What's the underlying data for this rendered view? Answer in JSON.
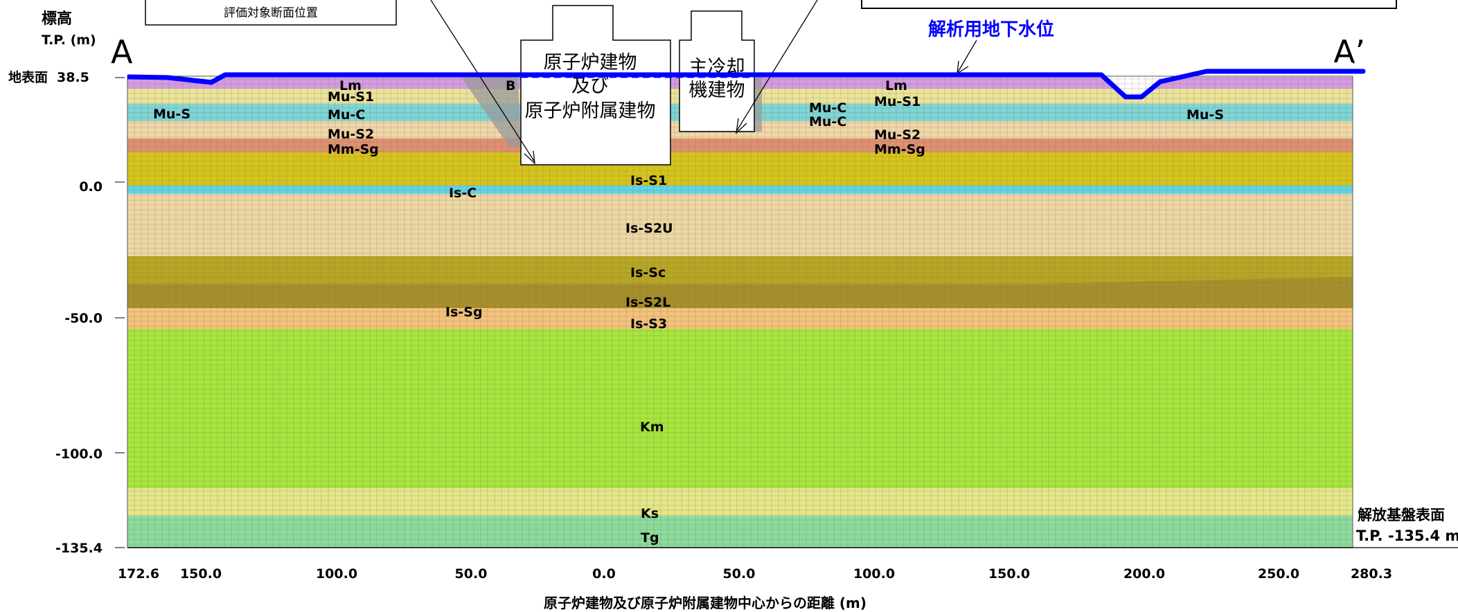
{
  "header": {
    "elevation_label": "標高",
    "elevation_unit": "T.P. (m)",
    "section_start": "A",
    "section_end": "A’",
    "callout_left": "評価対象断面位置"
  },
  "ground_surface": {
    "label": "地表面",
    "value": "38.5"
  },
  "groundwater": {
    "label": "解析用地下水位",
    "color": "#0000ff"
  },
  "buildings": {
    "reactor_line1": "原子炉建物",
    "reactor_line2": "及び",
    "reactor_line3": "原子炉附属建物",
    "cooling_line1": "主冷却",
    "cooling_line2": "機建物",
    "b_label": "B"
  },
  "y_axis": {
    "ticks": [
      "0.0",
      "-50.0",
      "-100.0",
      "-135.4"
    ]
  },
  "x_axis": {
    "ticks": [
      "172.6",
      "150.0",
      "100.0",
      "50.0",
      "0.0",
      "50.0",
      "100.0",
      "150.0",
      "200.0",
      "250.0",
      "280.3"
    ],
    "title": "原子炉建物及び原子炉附属建物中心からの距離 (m)"
  },
  "bedrock": {
    "line1": "解放基盤表面",
    "line2": "T.P. -135.4 m"
  },
  "layer_labels": {
    "lm_left": "Lm",
    "mus1_left": "Mu-S1",
    "mus_left": "Mu-S",
    "muc_left": "Mu-C",
    "mus2_left": "Mu-S2",
    "mmsg_left": "Mm-Sg",
    "muc_right1": "Mu-C",
    "muc_right2": "Mu-C",
    "lm_right": "Lm",
    "mus1_right": "Mu-S1",
    "mus2_right": "Mu-S2",
    "mmsg_right": "Mm-Sg",
    "mus_right": "Mu-S",
    "iss1": "Is-S1",
    "isc": "Is-C",
    "iss2u": "Is-S2U",
    "issc": "Is-Sc",
    "iss2l": "Is-S2L",
    "issg": "Is-Sg",
    "iss3": "Is-S3",
    "km": "Km",
    "ks": "Ks",
    "tg": "Tg"
  },
  "colors": {
    "lm": "#d49be0",
    "mus1": "#ece49a",
    "muc": "#7fd6d6",
    "mus2": "#f2d7a6",
    "mmsg": "#e09070",
    "iss1": "#d8c419",
    "isc": "#62d4e4",
    "iss2u": "#eed7a3",
    "issc": "#b8a620",
    "iss2l": "#a88f28",
    "iss3": "#f5c27a",
    "km": "#a8e63a",
    "ks": "#e6e887",
    "tg": "#8cdc9c",
    "grid": "#777777",
    "water": "#0000ff"
  }
}
